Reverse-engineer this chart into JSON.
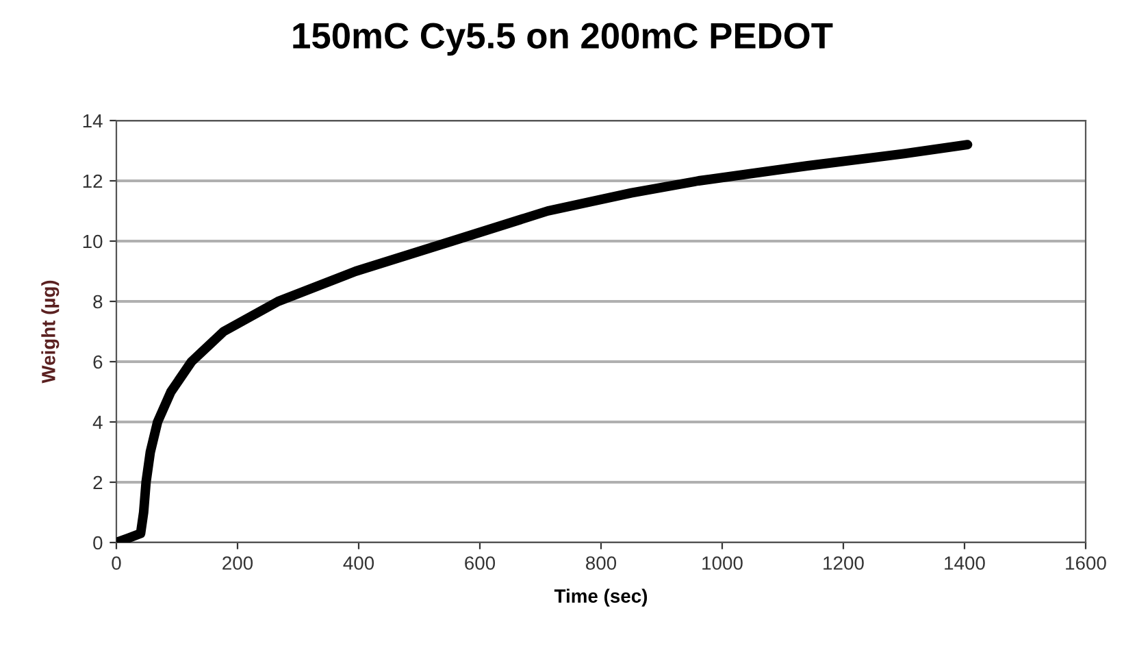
{
  "chart_data": {
    "type": "line",
    "title": "150mC Cy5.5 on 200mC PEDOT",
    "xlabel": "Time (sec)",
    "ylabel": "Weight (µg)",
    "series": [
      {
        "color": "#000000",
        "x": [
          0,
          20,
          40,
          45,
          49,
          56,
          68,
          90,
          124,
          177,
          267,
          395,
          554,
          712,
          850,
          961,
          1141,
          1300,
          1405
        ],
        "values": [
          0,
          0.15,
          0.3,
          1,
          2,
          3,
          4,
          5,
          6,
          7,
          8,
          9,
          10,
          11,
          11.6,
          12,
          12.5,
          12.9,
          13.2
        ]
      }
    ],
    "xlim": [
      0,
      1600
    ],
    "xticks": [
      0,
      200,
      400,
      600,
      800,
      1000,
      1200,
      1400,
      1600
    ],
    "ylim": [
      0,
      14
    ],
    "yticks": [
      0,
      2,
      4,
      6,
      8,
      10,
      12,
      14
    ],
    "grid": "y",
    "marker": "none",
    "line_style": "solid"
  }
}
